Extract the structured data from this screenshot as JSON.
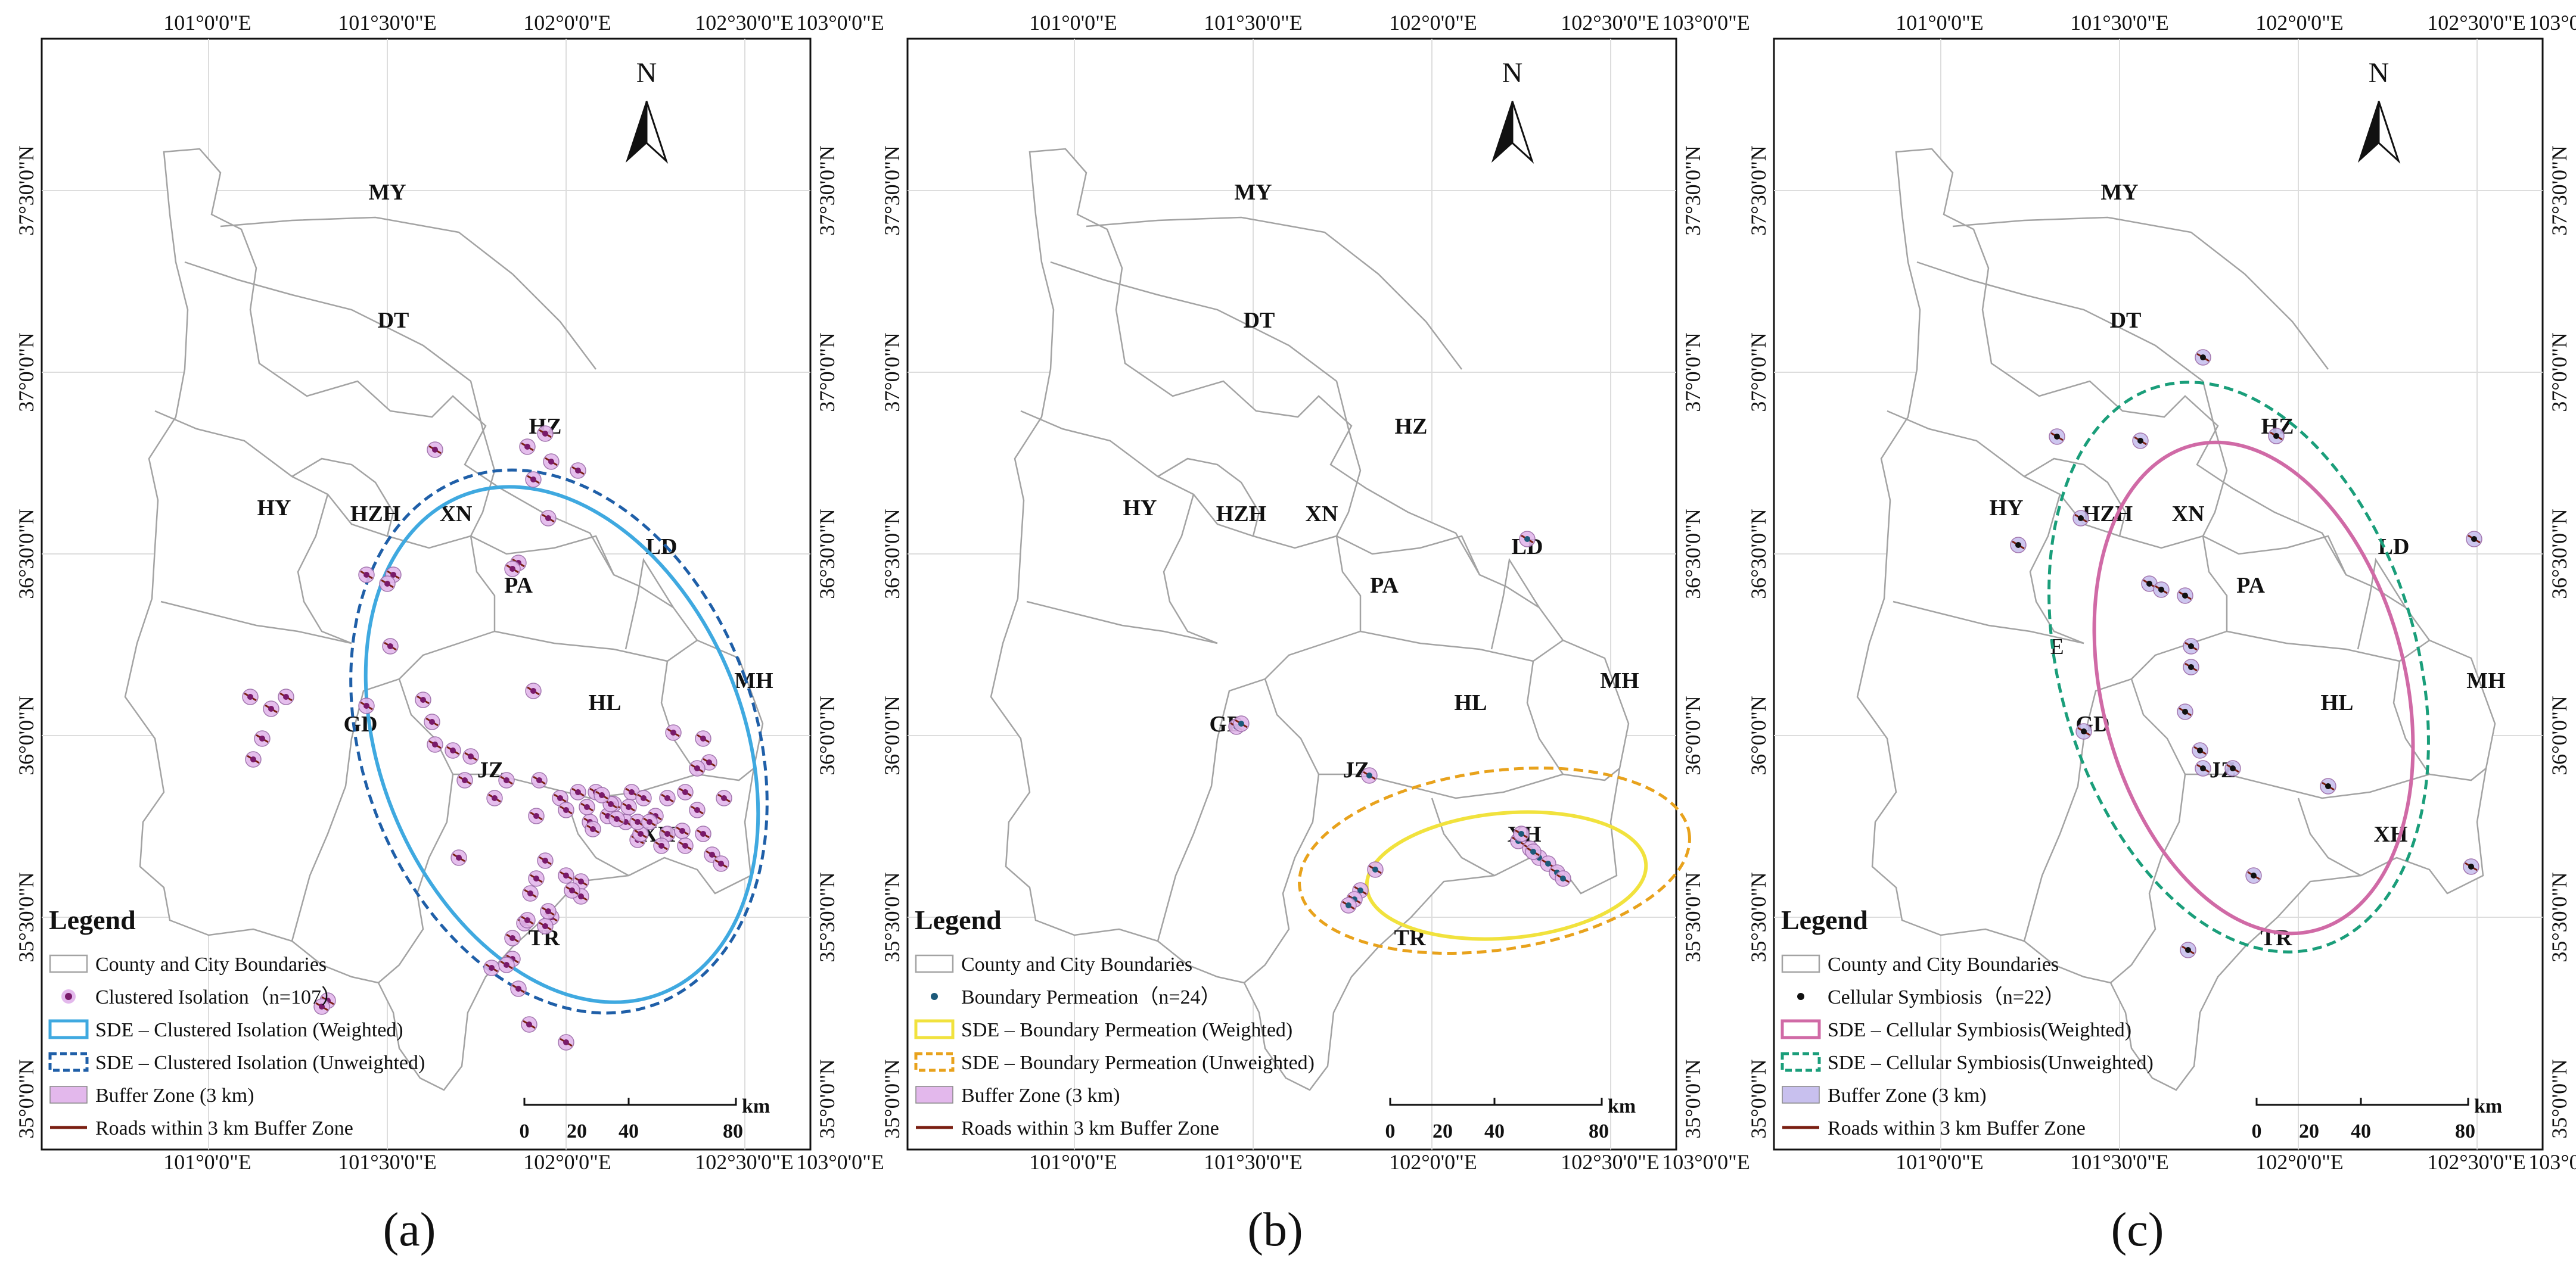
{
  "coordinates": {
    "lon_labels": [
      "101°0'0\"E",
      "101°30'0\"E",
      "102°0'0\"E",
      "102°30'0\"E",
      "103°0'0\"E"
    ],
    "lat_labels": [
      "37°30'0\"N",
      "37°0'0\"N",
      "36°30'0\"N",
      "36°0'0\"N",
      "35°30'0\"N",
      "35°0'0\"N"
    ]
  },
  "north_arrow_label": "N",
  "scale_bar": {
    "unit": "km",
    "ticks": [
      "0",
      "20",
      "40",
      "80"
    ]
  },
  "colors": {
    "boundary": "#a3a3a3",
    "buffer_fill": "#e3b8ec",
    "road": "#7a1f12",
    "grid": "#dddddd"
  },
  "panels": [
    {
      "caption": "(a)",
      "regions": [
        "MY",
        "DT",
        "HZ",
        "HY",
        "HZH",
        "XN",
        "LD",
        "PA",
        "HL",
        "MH",
        "GD",
        "JZ",
        "XH",
        "TR"
      ],
      "legend": {
        "title": "Legend",
        "items": [
          {
            "type": "boundary",
            "label": "County and City Boundaries"
          },
          {
            "type": "point",
            "label": "Clustered Isolation（n=107）",
            "color": "#7a1a6a"
          },
          {
            "type": "ellipse-solid",
            "label": "SDE – Clustered Isolation (Weighted)",
            "color": "#3fa9e0"
          },
          {
            "type": "ellipse-dashed",
            "label": "SDE – Clustered Isolation (Unweighted)",
            "color": "#1f5fa8"
          },
          {
            "type": "buffer",
            "label": "Buffer Zone (3 km)",
            "color": "#e3b8ec"
          },
          {
            "type": "road",
            "label": "Roads within 3 km Buffer Zone",
            "color": "#7a1f12"
          }
        ]
      }
    },
    {
      "caption": "(b)",
      "regions": [
        "MY",
        "DT",
        "HZ",
        "HY",
        "HZH",
        "XN",
        "LD",
        "PA",
        "HL",
        "MH",
        "GD",
        "JZ",
        "XH",
        "TR"
      ],
      "legend": {
        "title": "Legend",
        "items": [
          {
            "type": "boundary",
            "label": "County and City Boundaries"
          },
          {
            "type": "point",
            "label": "Boundary Permeation（n=24）",
            "color": "#1d5a7a"
          },
          {
            "type": "ellipse-solid",
            "label": "SDE – Boundary Permeation (Weighted)",
            "color": "#f1e23d"
          },
          {
            "type": "ellipse-dashed",
            "label": "SDE – Boundary Permeation (Unweighted)",
            "color": "#e8a21c"
          },
          {
            "type": "buffer",
            "label": "Buffer Zone (3 km)",
            "color": "#e3b8ec"
          },
          {
            "type": "road",
            "label": "Roads within 3 km Buffer Zone",
            "color": "#7a1f12"
          }
        ]
      }
    },
    {
      "caption": "(c)",
      "regions": [
        "MY",
        "DT",
        "HZ",
        "HY",
        "HZH",
        "XN",
        "LD",
        "PA",
        "HL",
        "MH",
        "GD",
        "JZ",
        "XH",
        "TR",
        "E"
      ],
      "legend": {
        "title": "Legend",
        "items": [
          {
            "type": "boundary",
            "label": "County and City Boundaries"
          },
          {
            "type": "point",
            "label": "Cellular Symbiosis（n=22）",
            "color": "#111111"
          },
          {
            "type": "ellipse-solid",
            "label": "SDE – Cellular Symbiosis(Weighted)",
            "color": "#d06aa6"
          },
          {
            "type": "ellipse-dashed",
            "label": "SDE – Cellular Symbiosis(Unweighted)",
            "color": "#1a9e7a"
          },
          {
            "type": "buffer",
            "label": "Buffer Zone (3 km)",
            "color": "#c8c0ee"
          },
          {
            "type": "road",
            "label": "Roads within 3 km Buffer Zone",
            "color": "#7a1f12"
          }
        ]
      }
    }
  ]
}
